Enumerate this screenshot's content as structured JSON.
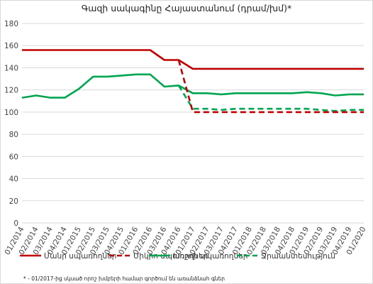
{
  "chart_data": {
    "type": "line",
    "title": "Գազի սակագինը Հայաստանում (դրամ/խմ)*",
    "ylim": [
      0,
      180
    ],
    "ytick_step": 20,
    "categories": [
      "01/2014",
      "02/2014",
      "03/2014",
      "04/2014",
      "01/2015",
      "02/2015",
      "03/2015",
      "04/2015",
      "01/2016",
      "02/2016",
      "03/2016",
      "04/2016",
      "01/2017",
      "02/2017",
      "03/2017",
      "04/2017",
      "01/2018",
      "02/2018",
      "03/2018",
      "04/2018",
      "01/2019",
      "02/2019",
      "03/2019",
      "04/2019",
      "01/2020"
    ],
    "series": [
      {
        "name": "Մանր սպառողներ",
        "color": "#c00000",
        "dash": false,
        "values": [
          156,
          156,
          156,
          156,
          156,
          156,
          156,
          156,
          156,
          156,
          147,
          147,
          139,
          139,
          139,
          139,
          139,
          139,
          139,
          139,
          139,
          139,
          139,
          139,
          139
        ]
      },
      {
        "name": "Միկրո սպառողներ",
        "color": "#c00000",
        "dash": true,
        "values": [
          null,
          null,
          null,
          null,
          null,
          null,
          null,
          null,
          null,
          null,
          null,
          147,
          100,
          100,
          100,
          100,
          100,
          100,
          100,
          100,
          100,
          100,
          100,
          100,
          100
        ]
      },
      {
        "name": "Խոշոր սպառողներ",
        "color": "#00a550",
        "dash": false,
        "values": [
          113,
          115,
          113,
          113,
          121,
          132,
          132,
          133,
          134,
          134,
          123,
          124,
          117,
          117,
          116,
          117,
          117,
          117,
          117,
          117,
          118,
          117,
          115,
          116,
          116
        ]
      },
      {
        "name": "Ջրաանտեսություն",
        "color": "#00a550",
        "dash": true,
        "values": [
          null,
          null,
          null,
          null,
          null,
          null,
          null,
          null,
          null,
          null,
          null,
          124,
          103,
          103,
          102,
          103,
          103,
          103,
          103,
          103,
          103,
          102,
          101,
          102,
          102
        ]
      }
    ],
    "footnote": "* - 01/2017-ից սկսած որոշ խմբերի համար գործում են առանձնահ գներ"
  }
}
